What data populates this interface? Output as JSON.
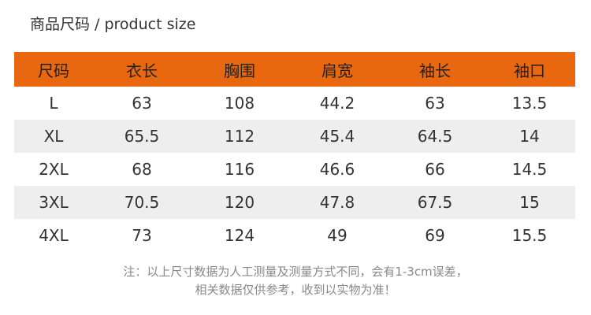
{
  "header": {
    "title": "商品尺码 / product size"
  },
  "table": {
    "columns": [
      "尺码",
      "衣长",
      "胸围",
      "肩宽",
      "袖长",
      "袖口"
    ],
    "rows": [
      [
        "L",
        "63",
        "108",
        "44.2",
        "63",
        "13.5"
      ],
      [
        "XL",
        "65.5",
        "112",
        "45.4",
        "64.5",
        "14"
      ],
      [
        "2XL",
        "68",
        "116",
        "46.6",
        "66",
        "14.5"
      ],
      [
        "3XL",
        "70.5",
        "120",
        "47.8",
        "67.5",
        "15"
      ],
      [
        "4XL",
        "73",
        "124",
        "49",
        "69",
        "15.5"
      ]
    ]
  },
  "notes": [
    "注：以上尺寸数据为人工测量及测量方式不同，会有1-3cm误差，",
    "相关数据仅供参考，收到以实物为准！"
  ]
}
